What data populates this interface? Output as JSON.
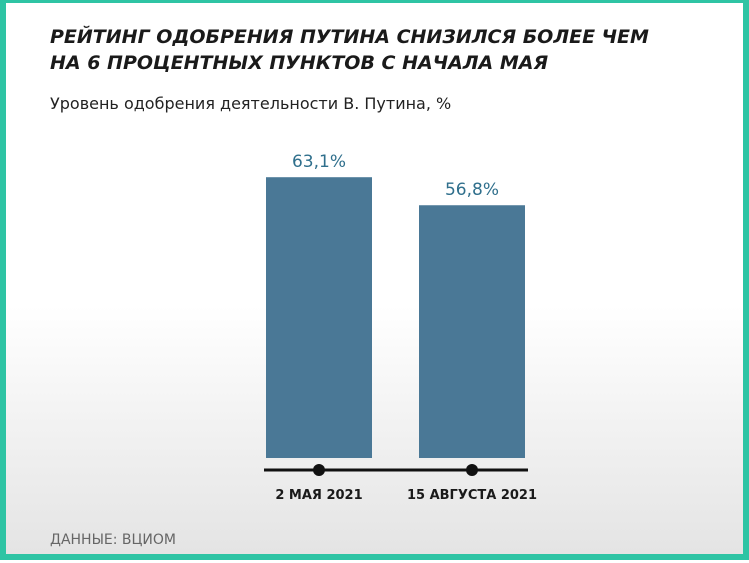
{
  "chart_data": {
    "type": "bar",
    "title": [
      "РЕЙТИНГ ОДОБРЕНИЯ ПУТИНА СНИЗИЛСЯ БОЛЕЕ ЧЕМ",
      "НА 6 ПРОЦЕНТНЫХ ПУНКТОВ С НАЧАЛА МАЯ"
    ],
    "subtitle": "Уровень одобрения деятельности В. Путина, %",
    "categories": [
      "2 МАЯ 2021",
      "15 АВГУСТА 2021"
    ],
    "values": [
      63.1,
      56.8
    ],
    "value_labels": [
      "63,1%",
      "56,8%"
    ],
    "color": "#4a7896",
    "source": "ДАННЫЕ: ВЦИОМ"
  }
}
